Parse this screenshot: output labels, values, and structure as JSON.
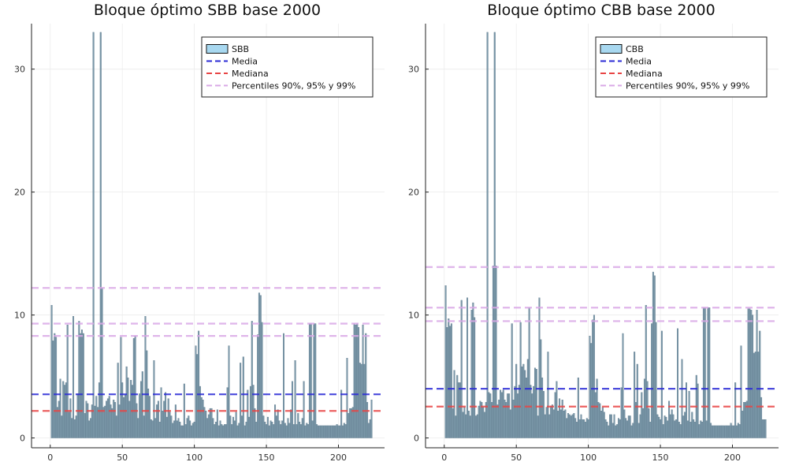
{
  "colors": {
    "bar_fill": "#6e8ea1",
    "bar_stroke": "#4f6d80",
    "legend_patch": "#a8d8f0",
    "mean": "#2b2bd6",
    "median": "#e84545",
    "percentiles": "#d9a8e6",
    "grid": "#ececec",
    "axis": "#222222"
  },
  "chart_data": [
    {
      "type": "bar",
      "title": "Bloque óptimo SBB base 2000",
      "xlabel": "",
      "ylabel": "",
      "xlim": [
        -13,
        232
      ],
      "ylim": [
        -0.8,
        33.7
      ],
      "xticks": [
        0,
        50,
        100,
        150,
        200
      ],
      "yticks": [
        0,
        10,
        20,
        30
      ],
      "grid": true,
      "legend_position": "top-right",
      "legend": [
        "SBB",
        "Media",
        "Mediana",
        "Percentiles 90%, 95% y 99%"
      ],
      "reference_lines": {
        "mean": 3.55,
        "median": 2.2,
        "percentiles": [
          8.3,
          9.3,
          12.2
        ]
      },
      "x_start": 1,
      "values": [
        10.8,
        7.9,
        8.5,
        8.2,
        2.5,
        3.0,
        4.8,
        1.8,
        4.6,
        4.3,
        4.5,
        9.2,
        2.1,
        3.2,
        1.6,
        9.9,
        1.5,
        1.8,
        3.6,
        9.5,
        8.5,
        8.8,
        8.5,
        2.0,
        3.0,
        2.8,
        1.4,
        1.6,
        2.7,
        33.0,
        2.6,
        3.4,
        2.5,
        4.5,
        33.0,
        12.2,
        2.5,
        2.6,
        3.0,
        3.2,
        3.4,
        2.7,
        2.4,
        3.1,
        2.9,
        1.8,
        6.1,
        2.7,
        8.2,
        4.5,
        3.3,
        3.5,
        5.8,
        4.9,
        3.0,
        4.7,
        4.3,
        8.1,
        8.3,
        2.8,
        1.6,
        3.6,
        4.6,
        5.4,
        1.8,
        9.9,
        7.1,
        4.0,
        3.4,
        1.5,
        1.4,
        6.3,
        1.6,
        2.7,
        3.0,
        1.3,
        4.1,
        2.2,
        3.0,
        3.7,
        1.7,
        3.2,
        2.1,
        1.8,
        1.2,
        1.4,
        2.7,
        1.4,
        1.6,
        1.3,
        1.0,
        1.0,
        4.4,
        1.1,
        1.6,
        1.8,
        1.4,
        1.0,
        1.2,
        1.3,
        7.5,
        6.8,
        8.7,
        4.2,
        3.3,
        3.1,
        2.5,
        2.2,
        1.6,
        1.9,
        2.4,
        2.4,
        1.6,
        1.1,
        1.3,
        2.3,
        1.0,
        1.4,
        1.1,
        1.0,
        1.1,
        1.1,
        4.1,
        7.5,
        1.8,
        1.1,
        1.7,
        1.4,
        2.1,
        1.0,
        1.2,
        6.1,
        1.8,
        6.6,
        1.0,
        1.3,
        3.9,
        1.7,
        4.2,
        9.5,
        4.3,
        2.4,
        1.3,
        8.4,
        11.8,
        11.6,
        9.4,
        1.8,
        1.3,
        1.1,
        1.7,
        1.0,
        1.4,
        1.3,
        1.1,
        2.7,
        1.8,
        2.3,
        1.4,
        1.1,
        1.4,
        8.5,
        1.2,
        1.0,
        1.6,
        1.2,
        2.3,
        4.6,
        1.1,
        6.3,
        1.1,
        2.0,
        1.3,
        1.1,
        1.6,
        4.6,
        1.0,
        1.2,
        1.1,
        9.3,
        9.3,
        1.4,
        9.3,
        9.3,
        1.1,
        1.0,
        1.0,
        1.0,
        1.0,
        1.0,
        1.0,
        1.0,
        1.0,
        1.0,
        1.0,
        1.0,
        1.0,
        1.0,
        1.1,
        1.0,
        1.0,
        3.9,
        1.0,
        1.2,
        1.1,
        6.5,
        2.0,
        2.4,
        2.4,
        2.5,
        9.3,
        9.2,
        9.3,
        9.0,
        6.1,
        6.0,
        9.2,
        6.0,
        8.5,
        2.9,
        1.2,
        1.5,
        3.1
      ]
    },
    {
      "type": "bar",
      "title": "Bloque óptimo CBB base 2000",
      "xlabel": "",
      "ylabel": "",
      "xlim": [
        -13,
        232
      ],
      "ylim": [
        -0.8,
        33.7
      ],
      "xticks": [
        0,
        50,
        100,
        150,
        200
      ],
      "yticks": [
        0,
        10,
        20,
        30
      ],
      "grid": true,
      "legend_position": "top-right",
      "legend": [
        "CBB",
        "Media",
        "Mediana",
        "Percentiles 90%, 95% y 99%"
      ],
      "reference_lines": {
        "mean": 4.0,
        "median": 2.55,
        "percentiles": [
          9.5,
          10.6,
          13.9
        ]
      },
      "x_start": 1,
      "values": [
        12.4,
        9.0,
        9.7,
        9.1,
        9.3,
        2.4,
        5.5,
        1.8,
        5.1,
        4.5,
        4.5,
        11.2,
        2.1,
        2.5,
        1.9,
        11.4,
        2.2,
        1.8,
        10.4,
        11.0,
        9.8,
        1.8,
        1.9,
        2.6,
        3.0,
        2.9,
        2.5,
        2.1,
        2.9,
        33.0,
        3.7,
        3.6,
        2.9,
        14.0,
        33.0,
        14.0,
        2.7,
        3.1,
        3.9,
        3.7,
        3.9,
        3.1,
        2.9,
        3.6,
        3.6,
        2.3,
        9.3,
        3.1,
        4.2,
        6.0,
        3.6,
        4.3,
        9.4,
        5.8,
        6.0,
        5.5,
        4.9,
        6.4,
        10.6,
        4.3,
        3.6,
        4.2,
        5.7,
        5.6,
        1.8,
        11.4,
        8.0,
        4.9,
        3.8,
        1.9,
        2.5,
        7.0,
        1.9,
        2.6,
        2.7,
        2.3,
        3.7,
        4.6,
        2.2,
        3.2,
        2.3,
        3.1,
        2.2,
        2.3,
        1.6,
        2.0,
        1.9,
        1.8,
        1.9,
        2.0,
        1.6,
        1.3,
        4.9,
        1.5,
        1.9,
        1.5,
        1.5,
        1.3,
        1.6,
        1.5,
        8.3,
        7.7,
        9.6,
        10.0,
        3.7,
        4.8,
        2.9,
        2.8,
        2.2,
        2.5,
        2.1,
        1.5,
        1.3,
        1.0,
        1.9,
        1.9,
        1.2,
        1.9,
        1.0,
        1.1,
        1.6,
        1.5,
        4.1,
        8.5,
        2.3,
        1.6,
        1.4,
        1.8,
        1.8,
        1.0,
        1.2,
        7.0,
        2.9,
        6.0,
        1.2,
        1.9,
        3.7,
        2.4,
        4.8,
        10.8,
        4.6,
        2.4,
        1.3,
        9.3,
        13.5,
        13.2,
        9.4,
        1.9,
        1.7,
        1.5,
        8.7,
        1.1,
        1.8,
        1.7,
        1.4,
        3.0,
        1.9,
        2.3,
        1.9,
        1.4,
        1.5,
        8.9,
        1.3,
        1.1,
        6.4,
        1.8,
        2.1,
        4.5,
        1.4,
        3.8,
        1.3,
        2.1,
        1.5,
        1.3,
        5.1,
        4.4,
        1.1,
        1.4,
        1.3,
        10.6,
        10.6,
        1.4,
        10.6,
        10.6,
        1.2,
        1.0,
        1.0,
        1.0,
        1.0,
        1.0,
        1.0,
        1.0,
        1.0,
        1.0,
        1.0,
        1.0,
        1.0,
        1.0,
        1.2,
        1.0,
        1.0,
        4.5,
        1.0,
        1.2,
        1.1,
        7.5,
        2.2,
        2.9,
        2.9,
        3.0,
        10.5,
        10.5,
        10.4,
        10.0,
        6.9,
        7.0,
        10.4,
        7.0,
        8.7,
        3.3,
        1.5,
        1.5,
        1.5
      ]
    }
  ]
}
